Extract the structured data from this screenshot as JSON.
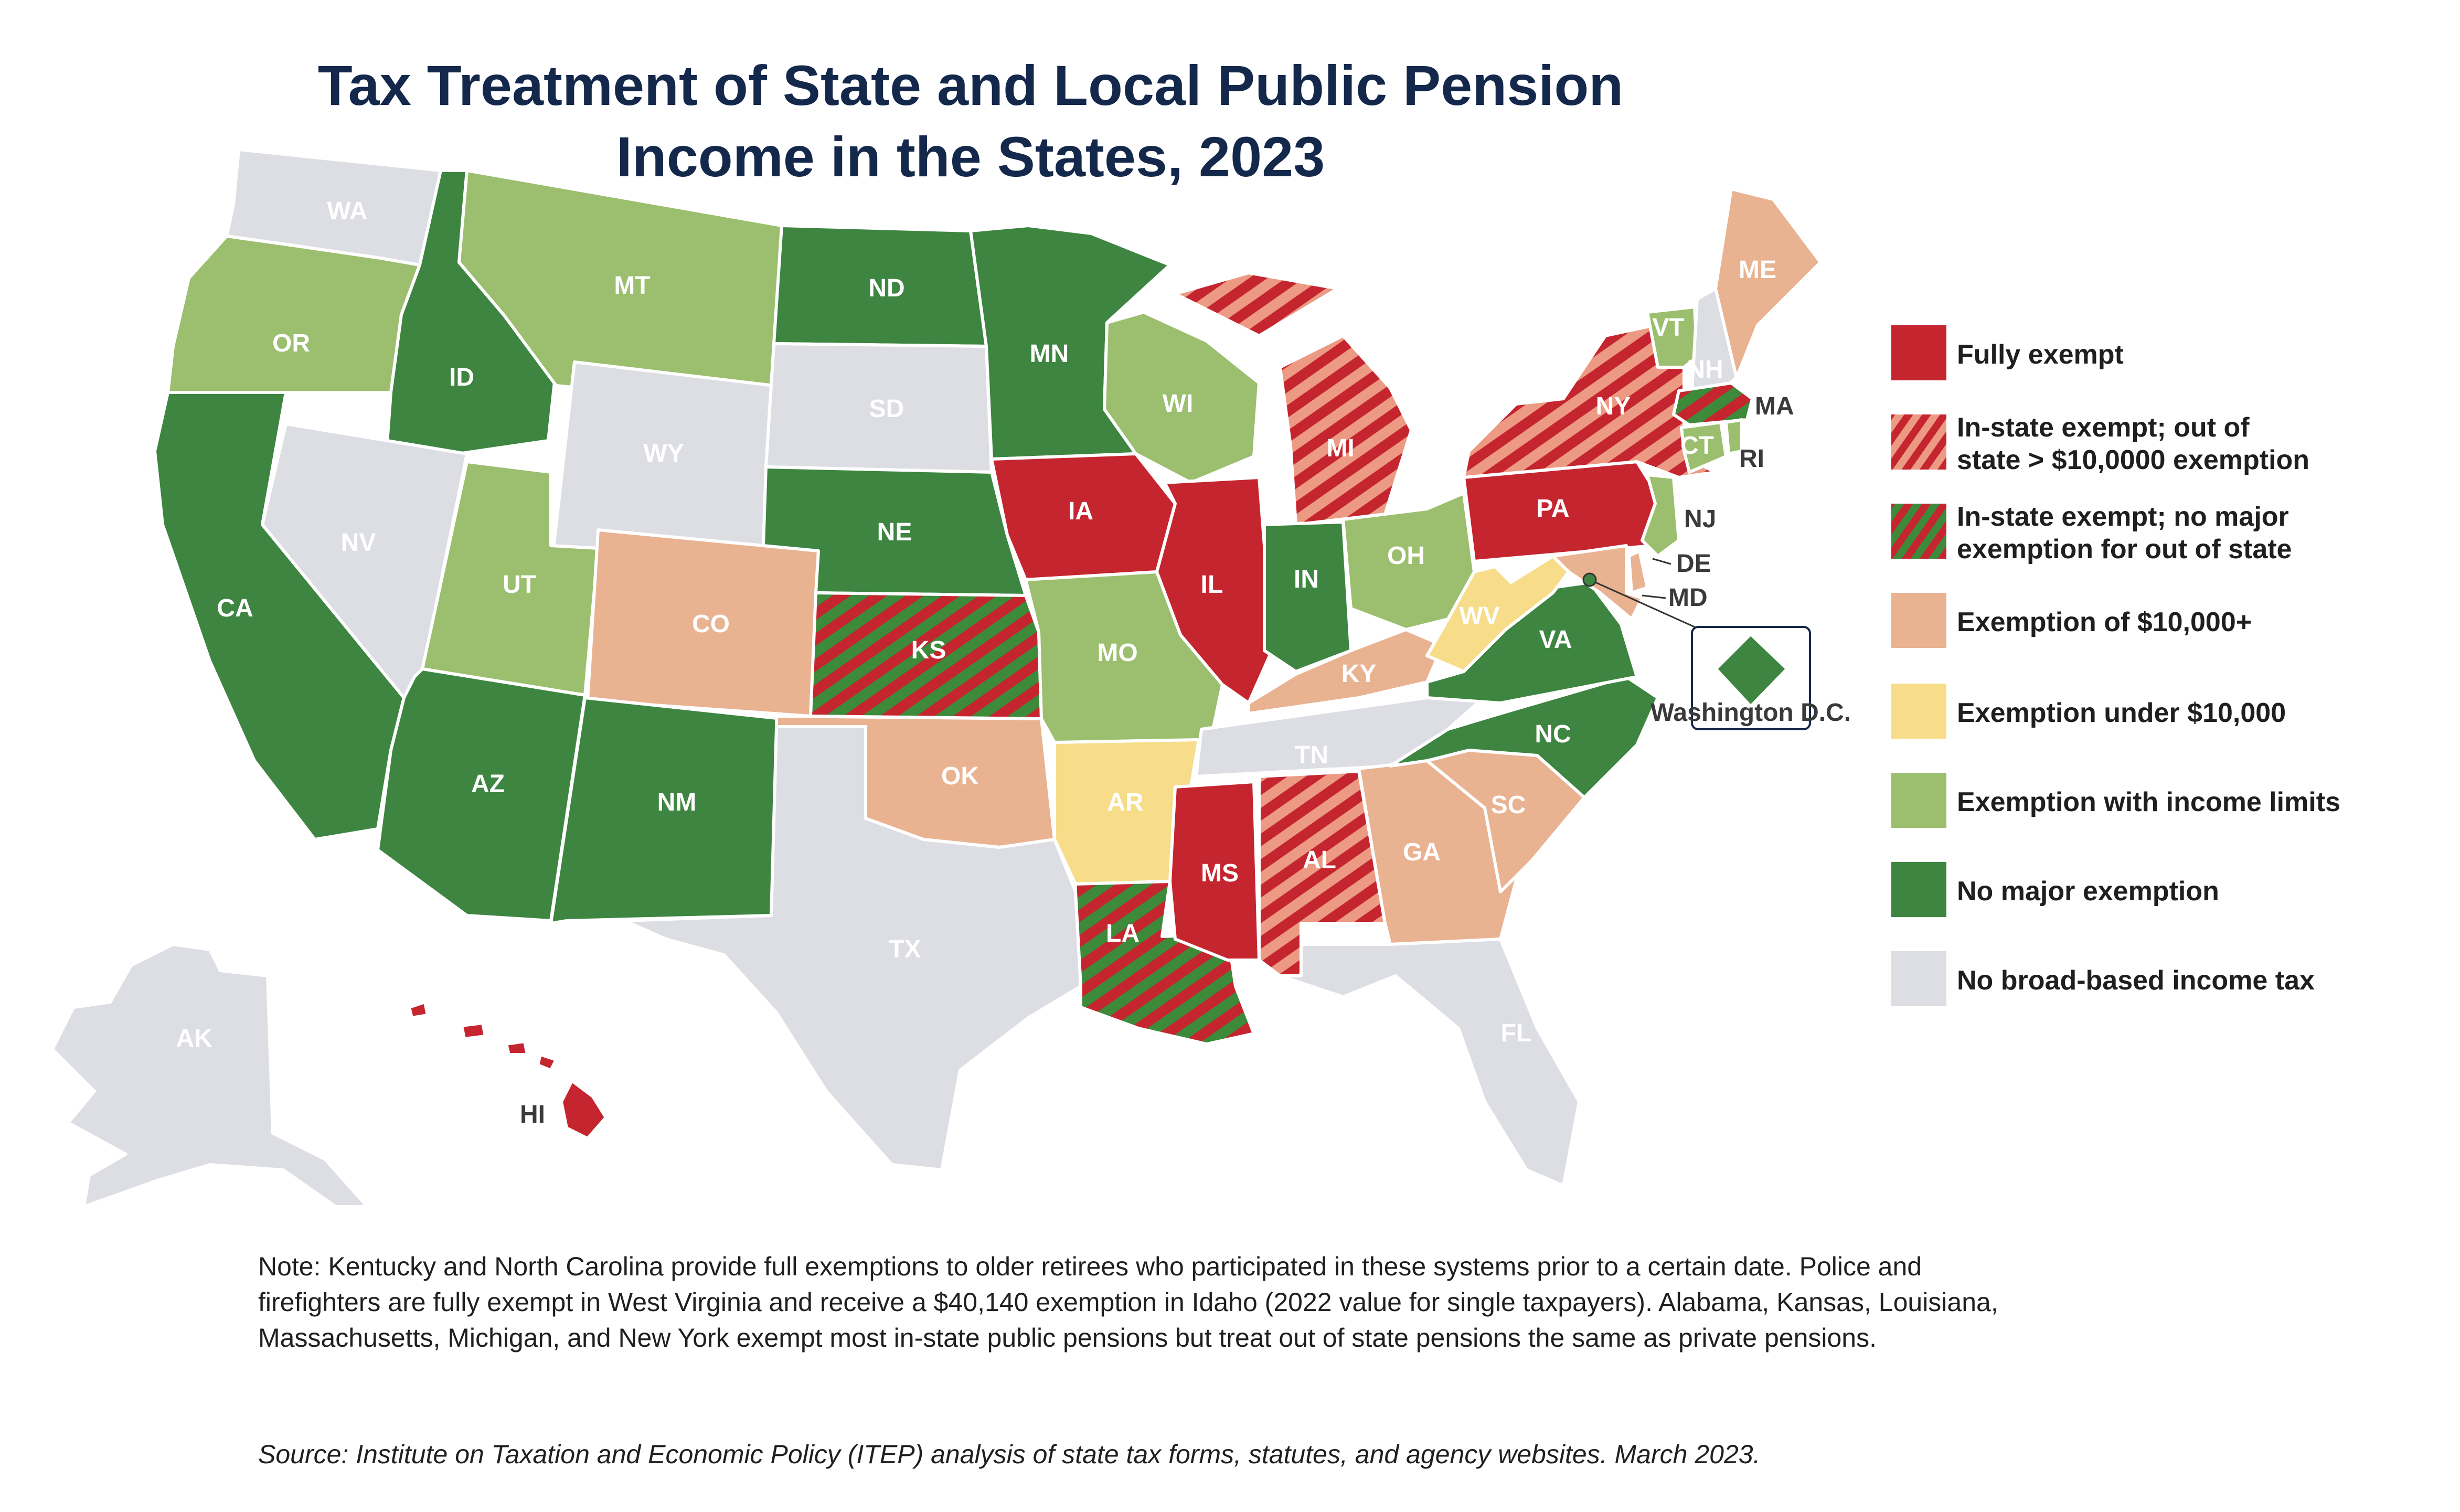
{
  "title_line1": "Tax Treatment of State and Local Public Pension",
  "title_line2": "Income in the States, 2023",
  "colors": {
    "fully_exempt": "#c5252f",
    "instate_hatch_light": "#ec9a83",
    "instate_hatch_dark": "#3d8a3a",
    "exempt_10000_plus": "#e9b291",
    "exempt_under_10000": "#f7dd8a",
    "income_limits": "#9bbf6e",
    "no_major": "#3d8540",
    "no_income_tax": "#dddde4"
  },
  "legend": [
    {
      "key": "fully_exempt",
      "label": "Fully exempt"
    },
    {
      "key": "instate_10k",
      "label": "In-state exempt; out of",
      "label2": "state > $10,0000 exemption"
    },
    {
      "key": "instate_none",
      "label": "In-state exempt; no major",
      "label2": "exemption for out of state"
    },
    {
      "key": "exempt_10000_plus",
      "label": "Exemption of $10,000+"
    },
    {
      "key": "exempt_under_10000",
      "label": "Exemption under $10,000"
    },
    {
      "key": "income_limits",
      "label": "Exemption with income limits"
    },
    {
      "key": "no_major",
      "label": "No major exemption"
    },
    {
      "key": "no_income_tax",
      "label": "No broad-based income tax"
    }
  ],
  "states": {
    "WA": "no_income_tax",
    "OR": "income_limits",
    "CA": "no_major",
    "ID": "no_major",
    "NV": "no_income_tax",
    "MT": "income_limits",
    "WY": "no_income_tax",
    "UT": "income_limits",
    "AZ": "no_major",
    "CO": "exempt_10000_plus",
    "NM": "no_major",
    "ND": "no_major",
    "SD": "no_income_tax",
    "NE": "no_major",
    "KS": "instate_none",
    "OK": "exempt_10000_plus",
    "TX": "no_income_tax",
    "MN": "no_major",
    "IA": "fully_exempt",
    "MO": "income_limits",
    "AR": "exempt_under_10000",
    "LA": "instate_none",
    "WI": "income_limits",
    "IL": "fully_exempt",
    "MI": "instate_10k",
    "IN": "no_major",
    "OH": "income_limits",
    "KY": "exempt_10000_plus",
    "TN": "no_income_tax",
    "MS": "fully_exempt",
    "AL": "instate_10k",
    "GA": "exempt_10000_plus",
    "FL": "no_income_tax",
    "SC": "exempt_10000_plus",
    "NC": "no_major",
    "VA": "no_major",
    "WV": "exempt_under_10000",
    "PA": "fully_exempt",
    "NY": "instate_10k",
    "VT": "income_limits",
    "NH": "no_income_tax",
    "ME": "exempt_10000_plus",
    "MA": "instate_none",
    "RI": "income_limits",
    "CT": "income_limits",
    "NJ": "income_limits",
    "DE": "exempt_10000_plus",
    "MD": "exempt_10000_plus",
    "AK": "no_income_tax",
    "HI": "fully_exempt",
    "DC": "no_major"
  },
  "dc_label": "Washington D.C.",
  "note": "Note: Kentucky and North Carolina provide full exemptions to older retirees who participated in these systems prior to a certain date. Police and firefighters are fully exempt in West Virginia and receive a $40,140 exemption in Idaho (2022 value for single taxpayers). Alabama, Kansas, Louisiana, Massachusetts, Michigan, and New York exempt most in-state public pensions but treat out of state pensions the same as private pensions.",
  "source": "Source: Institute on Taxation and Economic Policy (ITEP) analysis of state tax forms, statutes, and agency websites. March 2023."
}
